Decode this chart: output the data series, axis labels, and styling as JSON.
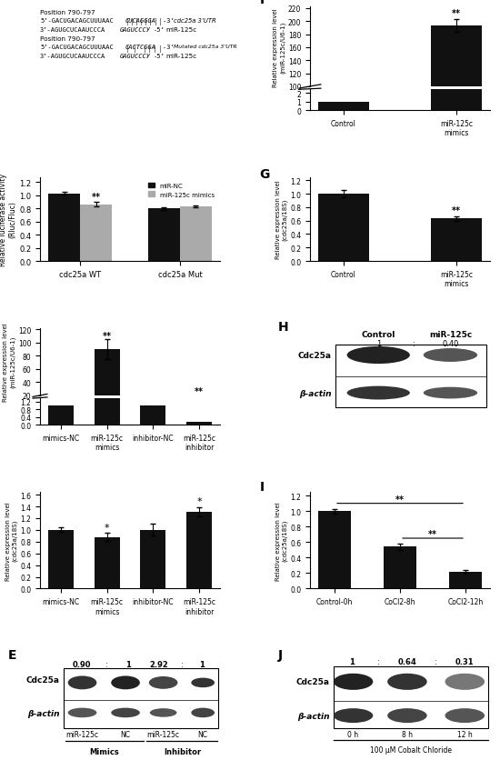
{
  "panel_B": {
    "categories": [
      "cdc25a WT",
      "cdc25a Mut"
    ],
    "miR_NC": [
      1.03,
      0.8
    ],
    "miR_NC_err": [
      0.02,
      0.02
    ],
    "miR_mimics": [
      0.865,
      0.835
    ],
    "miR_mimics_err": [
      0.03,
      0.015
    ],
    "ylabel": "Relative luciferase activity\n(Rluc/Fluc)",
    "ylim": [
      0.0,
      1.25
    ],
    "yticks": [
      0.0,
      0.2,
      0.4,
      0.6,
      0.8,
      1.0,
      1.2
    ],
    "legend": [
      "miR-NC",
      "miR-125c mimics"
    ],
    "colors": [
      "#111111",
      "#aaaaaa"
    ]
  },
  "panel_C": {
    "categories": [
      "mimics-NC",
      "miR-125c\nmimics",
      "inhibitor-NC",
      "miR-125c\ninhibitor"
    ],
    "values": [
      1.0,
      90.0,
      1.0,
      0.15
    ],
    "errors": [
      0.05,
      15.0,
      0.05,
      0.03
    ],
    "ylabel": "Relative expression level\n(miR-125c/U6-1)"
  },
  "panel_D": {
    "categories": [
      "mimics-NC",
      "miR-125c\nmimics",
      "inhibitor-NC",
      "miR-125c\ninhibitor"
    ],
    "values": [
      1.0,
      0.88,
      1.0,
      1.31
    ],
    "errors": [
      0.04,
      0.07,
      0.1,
      0.08
    ],
    "ylabel": "Relative expression level\n(cdc25a/18S)"
  },
  "panel_F": {
    "categories": [
      "Control",
      "miR-125c\nmimics"
    ],
    "values": [
      1.0,
      193.0
    ],
    "errors": [
      0.05,
      10.0
    ],
    "ylabel": "Relative expression level\n(miR-125c/U6-1)"
  },
  "panel_G": {
    "categories": [
      "Control",
      "miR-125c\nmimics"
    ],
    "values": [
      1.0,
      0.63
    ],
    "errors": [
      0.05,
      0.04
    ],
    "ylabel": "Relative expression level\n(cdc25a/18S)"
  },
  "panel_I": {
    "categories": [
      "Control-0h",
      "CoCl2-8h",
      "CoCl2-12h"
    ],
    "values": [
      1.0,
      0.54,
      0.22
    ],
    "errors": [
      0.03,
      0.04,
      0.02
    ],
    "ylabel": "Relative expression level\n(cdc25a/18S)"
  }
}
